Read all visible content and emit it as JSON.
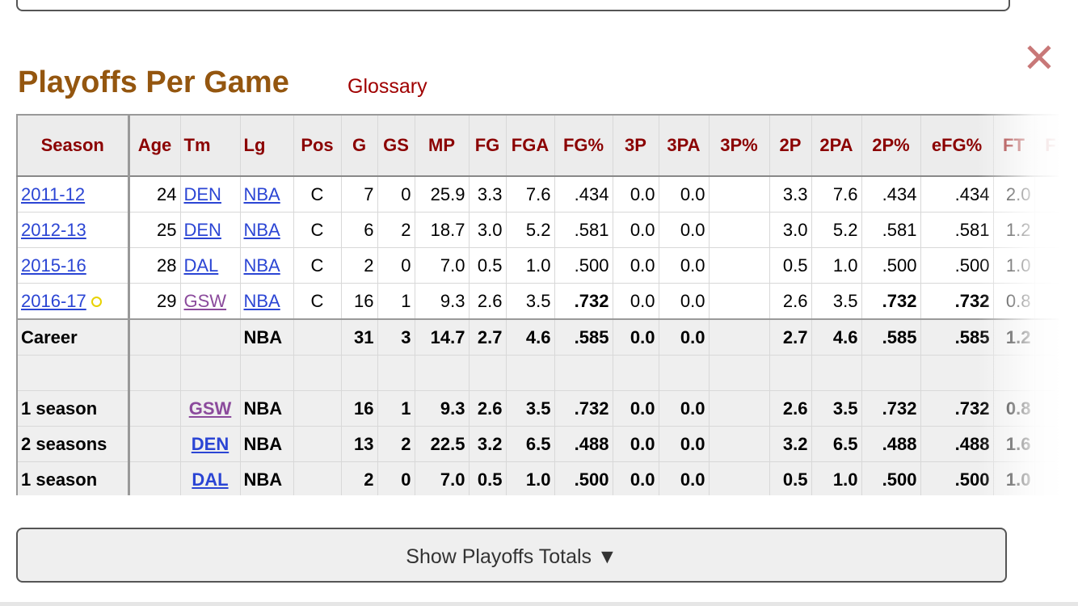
{
  "header": {
    "title": "Playoffs Per Game",
    "glossary_label": "Glossary",
    "close_glyph": "✕"
  },
  "columns": [
    "Season",
    "Age",
    "Tm",
    "Lg",
    "Pos",
    "G",
    "GS",
    "MP",
    "FG",
    "FGA",
    "FG%",
    "3P",
    "3PA",
    "3P%",
    "2P",
    "2PA",
    "2P%",
    "eFG%",
    "FT",
    "F"
  ],
  "rows": [
    {
      "season": "2011-12",
      "age": "24",
      "tm": "DEN",
      "lg": "NBA",
      "pos": "C",
      "g": "7",
      "gs": "0",
      "mp": "25.9",
      "fg": "3.3",
      "fga": "7.6",
      "fgp": ".434",
      "p3": "0.0",
      "p3a": "0.0",
      "p3p": "",
      "p2": "3.3",
      "p2a": "7.6",
      "p2p": ".434",
      "efg": ".434",
      "ft": "2.0",
      "tm_visited": false,
      "champion": false
    },
    {
      "season": "2012-13",
      "age": "25",
      "tm": "DEN",
      "lg": "NBA",
      "pos": "C",
      "g": "6",
      "gs": "2",
      "mp": "18.7",
      "fg": "3.0",
      "fga": "5.2",
      "fgp": ".581",
      "p3": "0.0",
      "p3a": "0.0",
      "p3p": "",
      "p2": "3.0",
      "p2a": "5.2",
      "p2p": ".581",
      "efg": ".581",
      "ft": "1.2",
      "tm_visited": false,
      "champion": false
    },
    {
      "season": "2015-16",
      "age": "28",
      "tm": "DAL",
      "lg": "NBA",
      "pos": "C",
      "g": "2",
      "gs": "0",
      "mp": "7.0",
      "fg": "0.5",
      "fga": "1.0",
      "fgp": ".500",
      "p3": "0.0",
      "p3a": "0.0",
      "p3p": "",
      "p2": "0.5",
      "p2a": "1.0",
      "p2p": ".500",
      "efg": ".500",
      "ft": "1.0",
      "tm_visited": false,
      "champion": false
    },
    {
      "season": "2016-17",
      "age": "29",
      "tm": "GSW",
      "lg": "NBA",
      "pos": "C",
      "g": "16",
      "gs": "1",
      "mp": "9.3",
      "fg": "2.6",
      "fga": "3.5",
      "fgp": ".732",
      "p3": "0.0",
      "p3a": "0.0",
      "p3p": "",
      "p2": "2.6",
      "p2a": "3.5",
      "p2p": ".732",
      "efg": ".732",
      "ft": "0.8",
      "tm_visited": true,
      "champion": true
    }
  ],
  "career": {
    "label": "Career",
    "lg": "NBA",
    "g": "31",
    "gs": "3",
    "mp": "14.7",
    "fg": "2.7",
    "fga": "4.6",
    "fgp": ".585",
    "p3": "0.0",
    "p3a": "0.0",
    "p2": "2.7",
    "p2a": "4.6",
    "p2p": ".585",
    "efg": ".585",
    "ft": "1.2"
  },
  "teams": [
    {
      "label": "1 season",
      "tm": "GSW",
      "lg": "NBA",
      "g": "16",
      "gs": "1",
      "mp": "9.3",
      "fg": "2.6",
      "fga": "3.5",
      "fgp": ".732",
      "p3": "0.0",
      "p3a": "0.0",
      "p2": "2.6",
      "p2a": "3.5",
      "p2p": ".732",
      "efg": ".732",
      "ft": "0.8",
      "tm_visited": true
    },
    {
      "label": "2 seasons",
      "tm": "DEN",
      "lg": "NBA",
      "g": "13",
      "gs": "2",
      "mp": "22.5",
      "fg": "3.2",
      "fga": "6.5",
      "fgp": ".488",
      "p3": "0.0",
      "p3a": "0.0",
      "p2": "3.2",
      "p2a": "6.5",
      "p2p": ".488",
      "efg": ".488",
      "ft": "1.6",
      "tm_visited": false
    },
    {
      "label": "1 season",
      "tm": "DAL",
      "lg": "NBA",
      "g": "2",
      "gs": "0",
      "mp": "7.0",
      "fg": "0.5",
      "fga": "1.0",
      "fgp": ".500",
      "p3": "0.0",
      "p3a": "0.0",
      "p2": "0.5",
      "p2a": "1.0",
      "p2p": ".500",
      "efg": ".500",
      "ft": "1.0",
      "tm_visited": false
    }
  ],
  "toggle_label": "Show Playoffs Totals ▼",
  "colors": {
    "title": "#94560f",
    "header_text": "#8b0000",
    "link": "#2b45d4",
    "visited_link": "#8b4a9c",
    "close": "#c87878",
    "champion_ring": "#e8d200"
  }
}
